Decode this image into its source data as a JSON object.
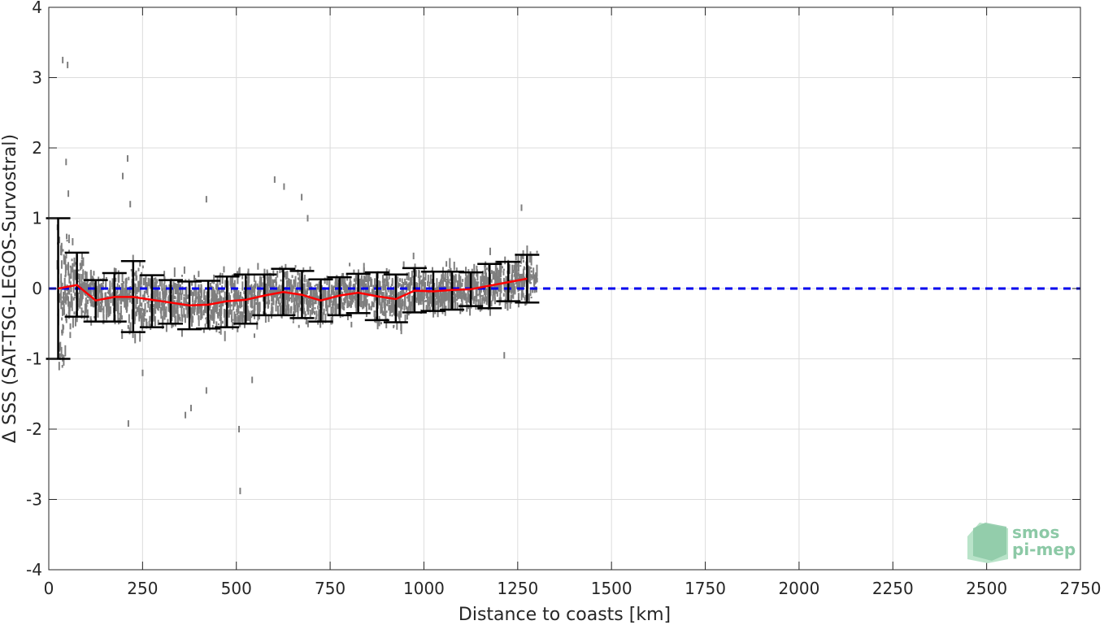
{
  "chart_data": {
    "type": "scatter",
    "xlabel": "Distance to coasts [km]",
    "ylabel": "Δ SSS (SAT-TSG-LEGOS-Survostral)",
    "xlim": [
      0,
      2750
    ],
    "ylim": [
      -4,
      4
    ],
    "xticks": [
      0,
      250,
      500,
      750,
      1000,
      1250,
      1500,
      1750,
      2000,
      2250,
      2500,
      2750
    ],
    "yticks": [
      4,
      3,
      2,
      1,
      0,
      -1,
      -2,
      -3,
      -4
    ],
    "grid": true,
    "reference_line": {
      "y": 0,
      "style": "dashed",
      "color": "#0000ee"
    },
    "scatter_color": "#7f7f7f",
    "scatter_extent": {
      "x": [
        0,
        1300
      ],
      "y_typical": [
        -1.0,
        1.0
      ]
    },
    "outliers": [
      {
        "x": 35,
        "y": 3.25
      },
      {
        "x": 48,
        "y": 3.18
      },
      {
        "x": 44,
        "y": 1.8
      },
      {
        "x": 50,
        "y": 1.35
      },
      {
        "x": 208,
        "y": 1.85
      },
      {
        "x": 195,
        "y": 1.6
      },
      {
        "x": 215,
        "y": 1.2
      },
      {
        "x": 600,
        "y": 1.55
      },
      {
        "x": 625,
        "y": 1.45
      },
      {
        "x": 672,
        "y": 1.3
      },
      {
        "x": 688,
        "y": 1.0
      },
      {
        "x": 1258,
        "y": 1.15
      },
      {
        "x": 418,
        "y": 1.27
      },
      {
        "x": 210,
        "y": -1.92
      },
      {
        "x": 362,
        "y": -1.8
      },
      {
        "x": 377,
        "y": -1.7
      },
      {
        "x": 505,
        "y": -2.0
      },
      {
        "x": 508,
        "y": -2.88
      },
      {
        "x": 540,
        "y": -1.3
      },
      {
        "x": 418,
        "y": -1.45
      },
      {
        "x": 1212,
        "y": -0.95
      },
      {
        "x": 248,
        "y": -1.2
      }
    ],
    "mean_line": {
      "color": "#ff0000",
      "x": [
        25,
        75,
        125,
        175,
        225,
        275,
        325,
        375,
        425,
        475,
        525,
        575,
        625,
        675,
        725,
        775,
        825,
        875,
        925,
        975,
        1025,
        1075,
        1125,
        1175,
        1225,
        1275
      ],
      "y": [
        0.0,
        0.05,
        -0.17,
        -0.12,
        -0.12,
        -0.16,
        -0.2,
        -0.24,
        -0.23,
        -0.18,
        -0.16,
        -0.1,
        -0.05,
        -0.09,
        -0.17,
        -0.1,
        -0.06,
        -0.11,
        -0.15,
        -0.03,
        -0.04,
        -0.02,
        -0.01,
        0.04,
        0.09,
        0.14
      ]
    },
    "error_bars": {
      "color": "#000000",
      "x": [
        25,
        75,
        125,
        175,
        225,
        275,
        325,
        375,
        425,
        475,
        525,
        575,
        625,
        675,
        725,
        775,
        825,
        875,
        925,
        975,
        1025,
        1075,
        1125,
        1175,
        1225,
        1275
      ],
      "low": [
        -1.0,
        -0.4,
        -0.47,
        -0.47,
        -0.62,
        -0.55,
        -0.5,
        -0.58,
        -0.57,
        -0.55,
        -0.5,
        -0.38,
        -0.38,
        -0.42,
        -0.47,
        -0.38,
        -0.35,
        -0.45,
        -0.48,
        -0.34,
        -0.32,
        -0.3,
        -0.25,
        -0.28,
        -0.18,
        -0.2
      ],
      "high": [
        1.0,
        0.51,
        0.12,
        0.22,
        0.39,
        0.19,
        0.12,
        0.1,
        0.11,
        0.17,
        0.2,
        0.2,
        0.28,
        0.25,
        0.13,
        0.16,
        0.21,
        0.23,
        0.2,
        0.29,
        0.24,
        0.24,
        0.23,
        0.35,
        0.38,
        0.48
      ]
    }
  },
  "logo": {
    "line1": "smos",
    "line2": "pi-mep"
  }
}
